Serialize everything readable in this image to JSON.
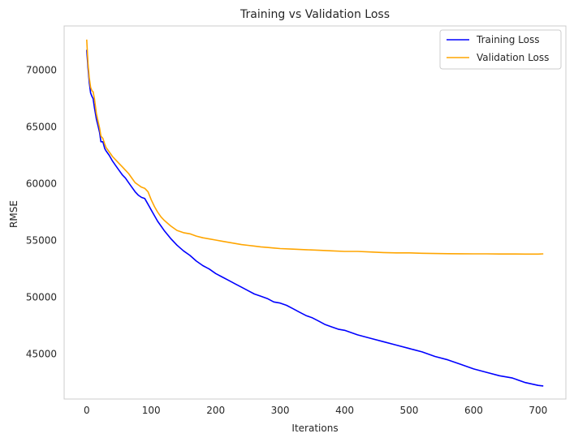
{
  "chart_data": {
    "type": "line",
    "title": "Training vs Validation Loss",
    "xlabel": "Iterations",
    "ylabel": "RMSE",
    "xlim": [
      -35,
      743
    ],
    "ylim": [
      41050,
      73900
    ],
    "xticks": [
      0,
      100,
      200,
      300,
      400,
      500,
      600,
      700
    ],
    "yticks": [
      45000,
      50000,
      55000,
      60000,
      65000,
      70000
    ],
    "grid": false,
    "legend_position": "top-right",
    "series": [
      {
        "name": "Training Loss",
        "color": "#0000ff",
        "x": [
          0,
          2,
          4,
          6,
          8,
          10,
          12,
          15,
          18,
          20,
          22,
          25,
          28,
          30,
          35,
          40,
          45,
          50,
          55,
          60,
          65,
          70,
          75,
          80,
          85,
          90,
          95,
          100,
          105,
          110,
          115,
          120,
          130,
          140,
          150,
          160,
          170,
          180,
          190,
          200,
          210,
          220,
          230,
          240,
          250,
          260,
          270,
          280,
          290,
          300,
          310,
          320,
          330,
          340,
          350,
          360,
          370,
          380,
          390,
          400,
          420,
          440,
          460,
          480,
          500,
          520,
          540,
          560,
          580,
          600,
          620,
          640,
          660,
          680,
          700,
          708
        ],
        "y": [
          71800,
          70200,
          68900,
          68000,
          67700,
          67500,
          66700,
          65700,
          65000,
          64500,
          63700,
          63700,
          63100,
          62900,
          62500,
          62000,
          61600,
          61200,
          60800,
          60500,
          60100,
          59700,
          59300,
          59000,
          58800,
          58700,
          58200,
          57700,
          57200,
          56700,
          56300,
          55900,
          55200,
          54600,
          54100,
          53700,
          53200,
          52800,
          52500,
          52100,
          51800,
          51500,
          51200,
          50900,
          50600,
          50300,
          50100,
          49900,
          49600,
          49500,
          49300,
          49000,
          48700,
          48400,
          48200,
          47900,
          47600,
          47400,
          47200,
          47100,
          46700,
          46400,
          46100,
          45800,
          45500,
          45200,
          44800,
          44500,
          44100,
          43700,
          43400,
          43100,
          42900,
          42500,
          42250,
          42200
        ]
      },
      {
        "name": "Validation Loss",
        "color": "#ffa500",
        "x": [
          0,
          2,
          4,
          6,
          8,
          10,
          12,
          15,
          18,
          20,
          22,
          25,
          28,
          30,
          35,
          40,
          45,
          50,
          55,
          60,
          65,
          70,
          75,
          80,
          85,
          90,
          95,
          100,
          105,
          110,
          115,
          120,
          130,
          140,
          150,
          160,
          170,
          180,
          190,
          200,
          210,
          220,
          230,
          240,
          250,
          260,
          270,
          280,
          290,
          300,
          320,
          340,
          360,
          380,
          400,
          420,
          440,
          460,
          480,
          500,
          520,
          540,
          560,
          580,
          600,
          620,
          640,
          660,
          680,
          700,
          708
        ],
        "y": [
          72700,
          70600,
          69300,
          68500,
          68200,
          68100,
          67500,
          66200,
          65400,
          64900,
          64200,
          64000,
          63500,
          63200,
          62800,
          62400,
          62100,
          61800,
          61500,
          61200,
          60900,
          60500,
          60100,
          59900,
          59700,
          59600,
          59300,
          58600,
          58000,
          57500,
          57100,
          56800,
          56300,
          55900,
          55700,
          55600,
          55400,
          55250,
          55150,
          55050,
          54950,
          54850,
          54750,
          54650,
          54580,
          54520,
          54450,
          54400,
          54350,
          54300,
          54250,
          54200,
          54150,
          54100,
          54050,
          54050,
          54000,
          53950,
          53920,
          53920,
          53880,
          53860,
          53850,
          53840,
          53830,
          53830,
          53820,
          53820,
          53810,
          53810,
          53830
        ]
      }
    ]
  }
}
